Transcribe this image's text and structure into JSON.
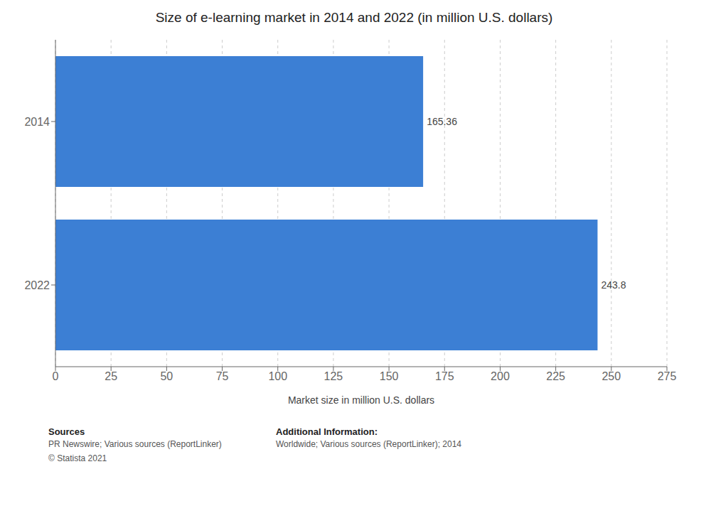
{
  "chart_data": {
    "type": "bar",
    "title": "Size of e-learning market in 2014 and 2022 (in million U.S. dollars)",
    "orientation": "horizontal",
    "categories": [
      "2022",
      "2014"
    ],
    "values": [
      243.8,
      165.36
    ],
    "color": "#3c7fd4",
    "data_labels": true,
    "xlabel": "Market size in million U.S. dollars",
    "xlim": [
      0,
      275
    ],
    "xticks": [
      0,
      25,
      50,
      75,
      100,
      125,
      150,
      175,
      200,
      225,
      250,
      275
    ],
    "grid": true,
    "annotations": [
      {
        "title": "Sources",
        "text": "PR Newswire; Various sources (ReportLinker)\n© Statista 2021"
      },
      {
        "title": "Additional Information:",
        "text": "Worldwide; Various sources (ReportLinker); 2014"
      }
    ]
  }
}
